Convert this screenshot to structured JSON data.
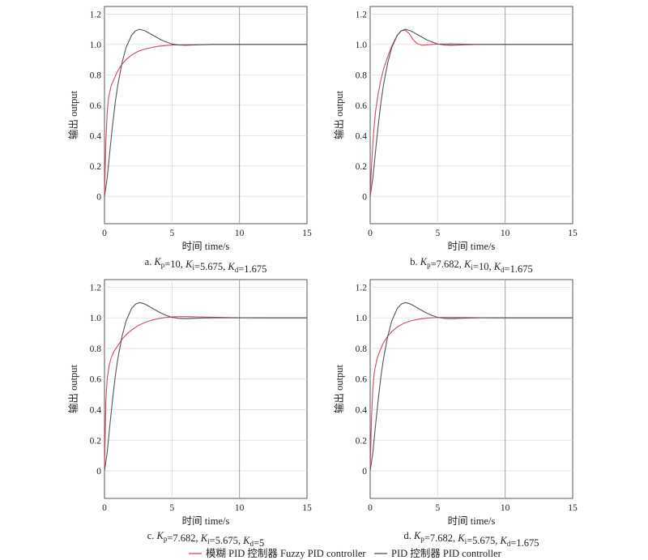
{
  "colors": {
    "fuzzy": "#d9475c",
    "pid": "#555555",
    "grid": "#d9d9d9",
    "axis": "#444444",
    "refline": "#9a9a9a"
  },
  "legend": [
    {
      "label": "模糊 PID 控制器 Fuzzy PID controller",
      "color": "#d9475c"
    },
    {
      "label": "PID 控制器 PID controller",
      "color": "#555555"
    }
  ],
  "chart_data": [
    {
      "type": "line",
      "caption": "a. Kp=10, Ki=5.675, Kd=1.675",
      "caption_parts": {
        "prefix": "a.",
        "kp": "10",
        "ki": "5.675",
        "kd": "1.675"
      },
      "xlabel": "时间 time/s",
      "ylabel": "输出 output",
      "xlim": [
        0,
        15
      ],
      "ylim": [
        -0.18,
        1.25
      ],
      "xticks": [
        "0",
        "5",
        "10",
        "15"
      ],
      "yticks": [
        "0",
        "0.2",
        "0.4",
        "0.6",
        "0.8",
        "1.0",
        "1.2"
      ],
      "grid": true,
      "refline_x": 10,
      "series": [
        {
          "name": "模糊 PID 控制器 Fuzzy PID controller",
          "x": [
            0,
            0.1,
            0.2,
            0.3,
            0.5,
            0.7,
            1.0,
            1.3,
            1.6,
            2.0,
            2.5,
            3.0,
            3.5,
            4.0,
            4.5,
            5.0,
            6.0,
            7.0,
            8.0,
            10.0,
            12.0,
            15.0
          ],
          "y": [
            0,
            0.36,
            0.55,
            0.65,
            0.73,
            0.77,
            0.83,
            0.87,
            0.9,
            0.93,
            0.955,
            0.97,
            0.98,
            0.988,
            0.993,
            0.996,
            0.998,
            0.999,
            1.0,
            1.0,
            1.0,
            1.0
          ]
        },
        {
          "name": "PID 控制器 PID controller",
          "x": [
            0,
            0.2,
            0.4,
            0.6,
            0.8,
            1.0,
            1.3,
            1.6,
            2.0,
            2.3,
            2.6,
            3.0,
            3.4,
            3.8,
            4.2,
            4.6,
            5.0,
            5.5,
            6.0,
            7.0,
            8.0,
            10.0,
            12.0,
            15.0
          ],
          "y": [
            0,
            0.12,
            0.3,
            0.47,
            0.62,
            0.74,
            0.88,
            0.98,
            1.06,
            1.09,
            1.1,
            1.09,
            1.07,
            1.05,
            1.03,
            1.015,
            1.003,
            0.997,
            0.995,
            0.998,
            1.0,
            1.0,
            1.0,
            1.0
          ]
        }
      ]
    },
    {
      "type": "line",
      "caption": "b. Kp=7.682, Ki=10, Kd=1.675",
      "caption_parts": {
        "prefix": "b.",
        "kp": "7.682",
        "ki": "10",
        "kd": "1.675"
      },
      "xlabel": "时间 time/s",
      "ylabel": "输出 output",
      "xlim": [
        0,
        15
      ],
      "ylim": [
        -0.18,
        1.25
      ],
      "xticks": [
        "0",
        "5",
        "10",
        "15"
      ],
      "yticks": [
        "0",
        "0.2",
        "0.4",
        "0.6",
        "0.8",
        "1.0",
        "1.2"
      ],
      "grid": true,
      "refline_x": 10,
      "series": [
        {
          "name": "模糊 PID 控制器 Fuzzy PID controller",
          "x": [
            0,
            0.1,
            0.25,
            0.4,
            0.6,
            0.8,
            1.0,
            1.3,
            1.6,
            2.0,
            2.3,
            2.6,
            2.9,
            3.2,
            3.5,
            3.8,
            4.2,
            4.6,
            5.0,
            6.0,
            7.0,
            8.0,
            10.0,
            12.0,
            15.0
          ],
          "y": [
            0,
            0.2,
            0.42,
            0.56,
            0.68,
            0.77,
            0.84,
            0.92,
            0.99,
            1.06,
            1.09,
            1.095,
            1.07,
            1.03,
            1.005,
            0.995,
            0.997,
            1.0,
            1.002,
            1.004,
            1.002,
            1.0,
            1.0,
            1.0,
            1.0
          ]
        },
        {
          "name": "PID 控制器 PID controller",
          "x": [
            0,
            0.2,
            0.4,
            0.6,
            0.8,
            1.0,
            1.3,
            1.6,
            2.0,
            2.3,
            2.6,
            3.0,
            3.4,
            3.8,
            4.2,
            4.6,
            5.0,
            5.5,
            6.0,
            7.0,
            8.0,
            10.0,
            12.0,
            15.0
          ],
          "y": [
            0,
            0.12,
            0.3,
            0.47,
            0.62,
            0.74,
            0.88,
            0.98,
            1.06,
            1.09,
            1.1,
            1.09,
            1.07,
            1.05,
            1.03,
            1.015,
            1.003,
            0.997,
            0.995,
            0.998,
            1.0,
            1.0,
            1.0,
            1.0
          ]
        }
      ]
    },
    {
      "type": "line",
      "caption": "c. Kp=7.682, Ki=5.675, Kd=5",
      "caption_parts": {
        "prefix": "c.",
        "kp": "7.682",
        "ki": "5.675",
        "kd": "5"
      },
      "xlabel": "时间 time/s",
      "ylabel": "输出 output",
      "xlim": [
        0,
        15
      ],
      "ylim": [
        -0.18,
        1.25
      ],
      "xticks": [
        "0",
        "5",
        "10",
        "15"
      ],
      "yticks": [
        "0",
        "0.2",
        "0.4",
        "0.6",
        "0.8",
        "1.0",
        "1.2"
      ],
      "grid": true,
      "refline_x": 10,
      "series": [
        {
          "name": "模糊 PID 控制器 Fuzzy PID controller",
          "x": [
            0,
            0.1,
            0.2,
            0.35,
            0.5,
            0.7,
            1.0,
            1.3,
            1.6,
            2.0,
            2.5,
            3.0,
            3.5,
            4.0,
            4.5,
            5.0,
            5.5,
            6.0,
            7.0,
            8.0,
            10.0,
            12.0,
            15.0
          ],
          "y": [
            0,
            0.45,
            0.6,
            0.69,
            0.74,
            0.78,
            0.82,
            0.86,
            0.89,
            0.92,
            0.95,
            0.97,
            0.985,
            0.995,
            1.002,
            1.006,
            1.008,
            1.008,
            1.006,
            1.004,
            1.001,
            1.0,
            1.0
          ]
        },
        {
          "name": "PID 控制器 PID controller",
          "x": [
            0,
            0.2,
            0.4,
            0.6,
            0.8,
            1.0,
            1.3,
            1.6,
            2.0,
            2.3,
            2.6,
            3.0,
            3.4,
            3.8,
            4.2,
            4.6,
            5.0,
            5.5,
            6.0,
            7.0,
            8.0,
            10.0,
            12.0,
            15.0
          ],
          "y": [
            0,
            0.12,
            0.3,
            0.47,
            0.62,
            0.74,
            0.88,
            0.98,
            1.06,
            1.09,
            1.1,
            1.09,
            1.07,
            1.05,
            1.03,
            1.015,
            1.003,
            0.997,
            0.995,
            0.998,
            1.0,
            1.0,
            1.0,
            1.0
          ]
        }
      ]
    },
    {
      "type": "line",
      "caption": "d. Kp=7.682, Ki=5.675, Kd=1.675",
      "caption_parts": {
        "prefix": "d.",
        "kp": "7.682",
        "ki": "5.675",
        "kd": "1.675"
      },
      "xlabel": "时间 time/s",
      "ylabel": "输出 output",
      "xlim": [
        0,
        15
      ],
      "ylim": [
        -0.18,
        1.25
      ],
      "xticks": [
        "0",
        "5",
        "10",
        "15"
      ],
      "yticks": [
        "0",
        "0.2",
        "0.4",
        "0.6",
        "0.8",
        "1.0",
        "1.2"
      ],
      "grid": true,
      "refline_x": 10,
      "series": [
        {
          "name": "模糊 PID 控制器 Fuzzy PID controller",
          "x": [
            0,
            0.1,
            0.2,
            0.3,
            0.5,
            0.7,
            1.0,
            1.3,
            1.6,
            2.0,
            2.5,
            3.0,
            3.5,
            4.0,
            4.5,
            5.0,
            5.5,
            6.0,
            7.0,
            8.0,
            10.0,
            12.0,
            15.0
          ],
          "y": [
            0,
            0.35,
            0.54,
            0.64,
            0.73,
            0.78,
            0.84,
            0.88,
            0.91,
            0.94,
            0.965,
            0.98,
            0.99,
            0.996,
            1.0,
            1.002,
            1.003,
            1.003,
            1.002,
            1.001,
            1.0,
            1.0,
            1.0
          ]
        },
        {
          "name": "PID 控制器 PID controller",
          "x": [
            0,
            0.2,
            0.4,
            0.6,
            0.8,
            1.0,
            1.3,
            1.6,
            2.0,
            2.3,
            2.6,
            3.0,
            3.4,
            3.8,
            4.2,
            4.6,
            5.0,
            5.5,
            6.0,
            7.0,
            8.0,
            10.0,
            12.0,
            15.0
          ],
          "y": [
            0,
            0.12,
            0.3,
            0.47,
            0.62,
            0.74,
            0.88,
            0.98,
            1.06,
            1.09,
            1.1,
            1.09,
            1.07,
            1.05,
            1.03,
            1.015,
            1.003,
            0.997,
            0.995,
            0.998,
            1.0,
            1.0,
            1.0,
            1.0
          ]
        }
      ]
    }
  ]
}
